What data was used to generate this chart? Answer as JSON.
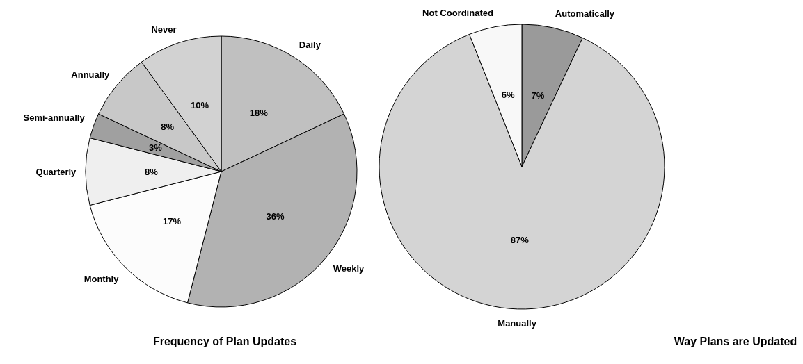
{
  "chart_data": [
    {
      "type": "pie",
      "title": "Frequency of Plan Updates",
      "categories": [
        "Daily",
        "Weekly",
        "Monthly",
        "Quarterly",
        "Semi-annually",
        "Annually",
        "Never"
      ],
      "values": [
        18,
        36,
        17,
        8,
        3,
        8,
        10
      ],
      "colors": [
        "#c0c0c0",
        "#b2b2b2",
        "#fcfcfc",
        "#efefef",
        "#a0a0a0",
        "#c8c8c8",
        "#d2d2d2"
      ],
      "value_labels": [
        "18%",
        "36%",
        "17%",
        "8%",
        "3%",
        "8%",
        "10%"
      ],
      "legend": false
    },
    {
      "type": "pie",
      "title": "Way Plans are Updated",
      "categories": [
        "Automatically",
        "Manually",
        "Not Coordinated"
      ],
      "values": [
        7,
        87,
        6
      ],
      "colors": [
        "#9a9a9a",
        "#d4d4d4",
        "#f8f8f8"
      ],
      "value_labels": [
        "7%",
        "87%",
        "6%"
      ],
      "legend": false
    }
  ]
}
